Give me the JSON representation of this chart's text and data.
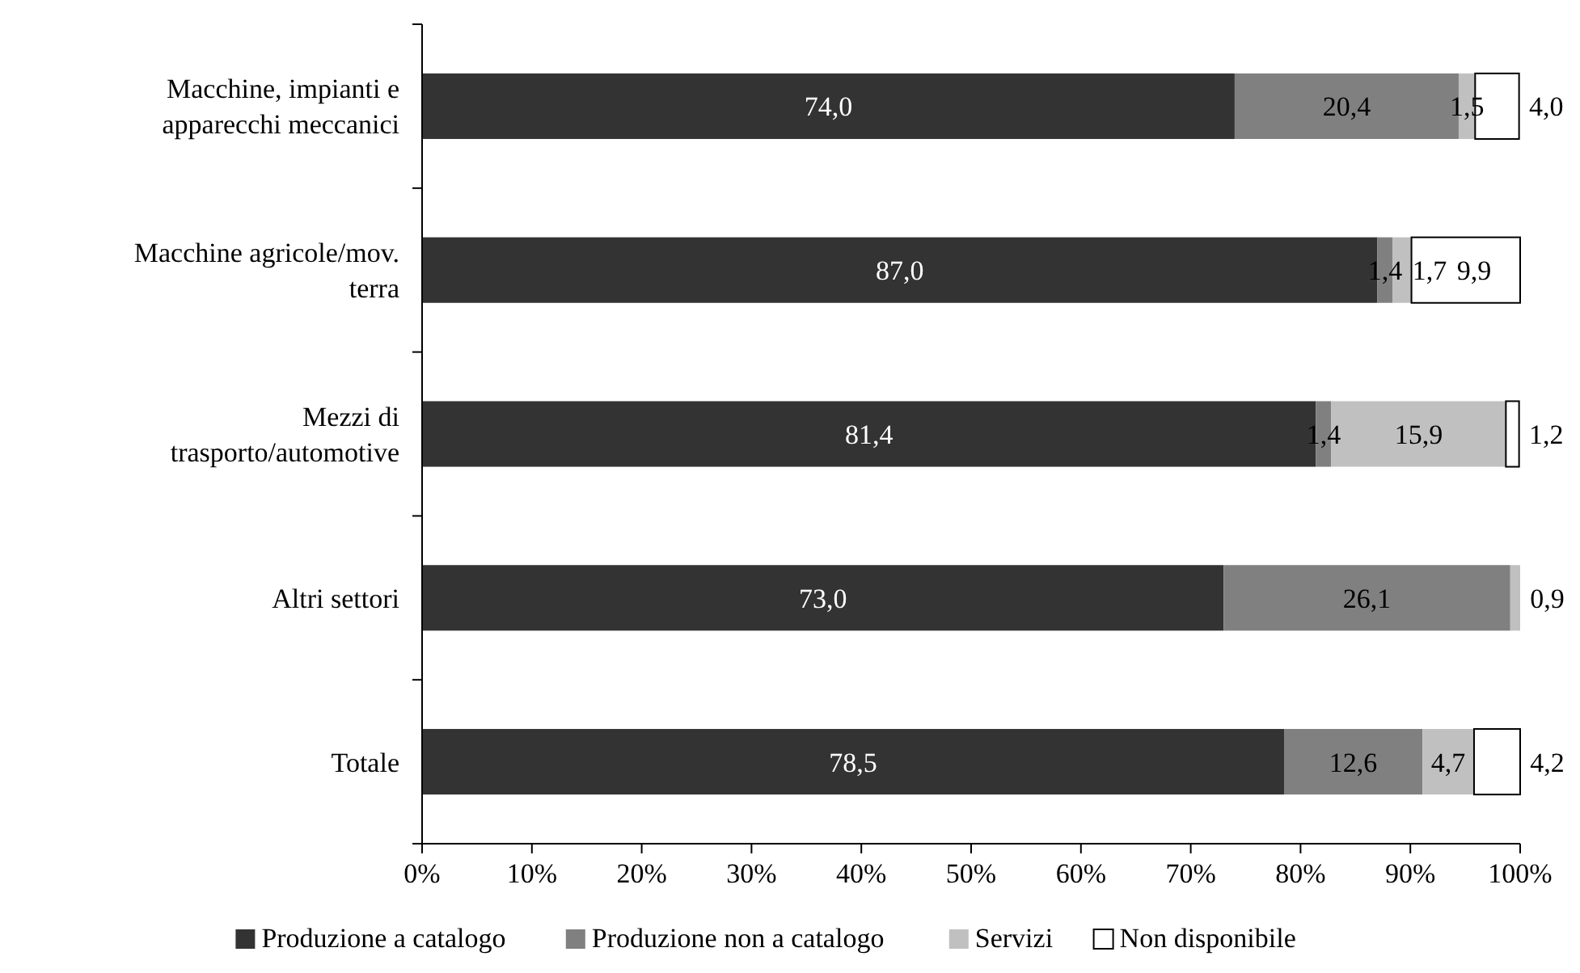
{
  "chart_data": {
    "type": "bar",
    "orientation": "horizontal",
    "stacked": true,
    "categories": [
      "Macchine, impianti e apparecchi meccanici",
      "Macchine agricole/mov. terra",
      "Mezzi di trasporto/automotive",
      "Altri settori",
      "Totale"
    ],
    "series": [
      {
        "name": "Produzione a catalogo",
        "color": "#333333",
        "values": [
          74.0,
          87.0,
          81.4,
          73.0,
          78.5
        ],
        "value_labels": [
          "74,0",
          "87,0",
          "81,4",
          "73,0",
          "78,5"
        ]
      },
      {
        "name": "Produzione non a catalogo",
        "color": "#808080",
        "values": [
          20.4,
          1.4,
          1.4,
          26.1,
          12.6
        ],
        "value_labels": [
          "20,4",
          "1,4",
          "1,4",
          "26,1",
          "12,6"
        ]
      },
      {
        "name": "Servizi",
        "color": "#c0c0c0",
        "values": [
          1.5,
          1.7,
          15.9,
          0.9,
          4.7
        ],
        "value_labels": [
          "1,5",
          "1,7",
          "15,9",
          "0,9",
          "4,7"
        ]
      },
      {
        "name": "Non disponibile",
        "color": "#ffffff",
        "values": [
          4.0,
          9.9,
          1.2,
          null,
          4.2
        ],
        "value_labels": [
          "4,0",
          "9,9",
          "1,2",
          null,
          "4,2"
        ]
      }
    ],
    "xlim": [
      0,
      100
    ],
    "xticks": [
      {
        "value": 0,
        "label": "0%"
      },
      {
        "value": 10,
        "label": "10%"
      },
      {
        "value": 20,
        "label": "20%"
      },
      {
        "value": 30,
        "label": "30%"
      },
      {
        "value": 40,
        "label": "40%"
      },
      {
        "value": 50,
        "label": "50%"
      },
      {
        "value": 60,
        "label": "60%"
      },
      {
        "value": 70,
        "label": "70%"
      },
      {
        "value": 80,
        "label": "80%"
      },
      {
        "value": 90,
        "label": "90%"
      },
      {
        "value": 100,
        "label": "100%"
      }
    ],
    "legend": "bottom"
  }
}
